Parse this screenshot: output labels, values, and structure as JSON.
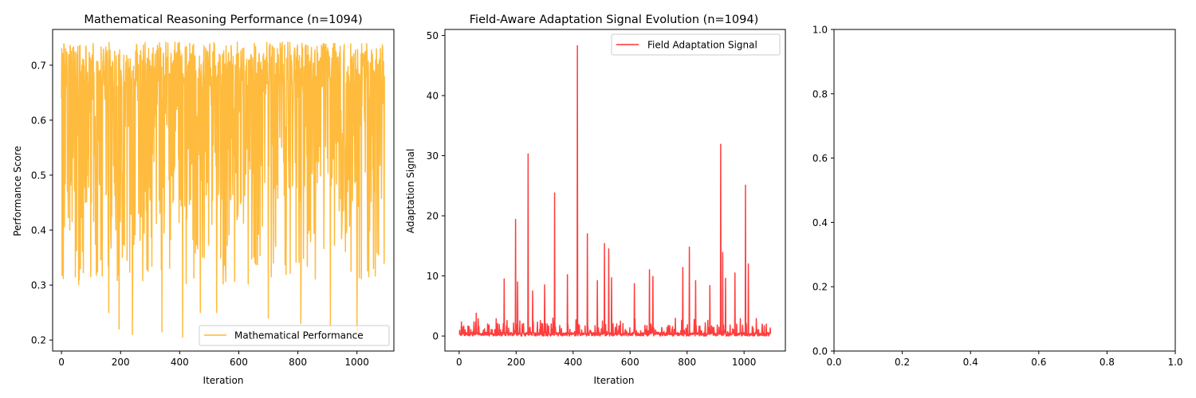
{
  "chart_data": [
    {
      "type": "line",
      "title": "Mathematical Reasoning Performance (n=1094)",
      "xlabel": "Iteration",
      "ylabel": "Performance Score",
      "xlim": [
        -30,
        1125
      ],
      "ylim": [
        0.18,
        0.765
      ],
      "x_ticks": [
        0,
        200,
        400,
        600,
        800,
        1000
      ],
      "y_ticks": [
        0.2,
        0.3,
        0.4,
        0.5,
        0.6,
        0.7
      ],
      "legend_position": "lower-right",
      "grid": false,
      "series": [
        {
          "name": "Mathematical Performance",
          "color": "#ffb733",
          "n_points": 1094,
          "x_start": 0,
          "x_step": 1,
          "value_range": [
            0.205,
            0.742
          ],
          "notable_minima": [
            [
              20,
              0.47
            ],
            [
              28,
              0.4
            ],
            [
              60,
              0.31
            ],
            [
              160,
              0.25
            ],
            [
              195,
              0.22
            ],
            [
              240,
              0.21
            ],
            [
              340,
              0.215
            ],
            [
              410,
              0.205
            ],
            [
              470,
              0.25
            ],
            [
              525,
              0.25
            ],
            [
              700,
              0.24
            ],
            [
              810,
              0.23
            ],
            [
              910,
              0.225
            ],
            [
              1000,
              0.21
            ],
            [
              1040,
              0.315
            ]
          ],
          "final_value": 0.68
        }
      ]
    },
    {
      "type": "line",
      "title": "Field-Aware Adaptation Signal Evolution (n=1094)",
      "xlabel": "Iteration",
      "ylabel": "Adaptation Signal",
      "xlim": [
        -50,
        1145
      ],
      "ylim": [
        -2.5,
        51
      ],
      "x_ticks": [
        0,
        200,
        400,
        600,
        800,
        1000
      ],
      "y_ticks": [
        0,
        10,
        20,
        30,
        40,
        50
      ],
      "legend_position": "upper-right",
      "grid": false,
      "series": [
        {
          "name": "Field Adaptation Signal",
          "color": "#ff3333",
          "n_points": 1094,
          "x_start": 0,
          "x_step": 1,
          "baseline_range": [
            0,
            3
          ],
          "spikes": [
            [
              60,
              3.8
            ],
            [
              158,
              9.5
            ],
            [
              198,
              19.4
            ],
            [
              205,
              9.0
            ],
            [
              242,
              30.3
            ],
            [
              258,
              7.5
            ],
            [
              300,
              8.5
            ],
            [
              335,
              23.8
            ],
            [
              380,
              10.2
            ],
            [
              415,
              48.3
            ],
            [
              450,
              17.0
            ],
            [
              485,
              9.2
            ],
            [
              510,
              15.4
            ],
            [
              525,
              14.5
            ],
            [
              535,
              9.7
            ],
            [
              615,
              8.7
            ],
            [
              668,
              11.0
            ],
            [
              680,
              9.9
            ],
            [
              785,
              11.4
            ],
            [
              808,
              14.8
            ],
            [
              830,
              9.2
            ],
            [
              880,
              8.4
            ],
            [
              918,
              31.9
            ],
            [
              925,
              13.9
            ],
            [
              935,
              9.6
            ],
            [
              968,
              10.5
            ],
            [
              1005,
              25.1
            ],
            [
              1015,
              12.0
            ]
          ]
        }
      ]
    },
    {
      "type": "line",
      "title": "",
      "xlabel": "",
      "ylabel": "",
      "xlim": [
        0,
        1
      ],
      "ylim": [
        0,
        1
      ],
      "x_ticks": [
        0.0,
        0.2,
        0.4,
        0.6,
        0.8,
        1.0
      ],
      "y_ticks": [
        0.0,
        0.2,
        0.4,
        0.6,
        0.8,
        1.0
      ],
      "x_tick_labels": [
        "0.0",
        "0.2",
        "0.4",
        "0.6",
        "0.8",
        "1.0"
      ],
      "y_tick_labels": [
        "0.0",
        "0.2",
        "0.4",
        "0.6",
        "0.8",
        "1.0"
      ],
      "series": []
    }
  ]
}
